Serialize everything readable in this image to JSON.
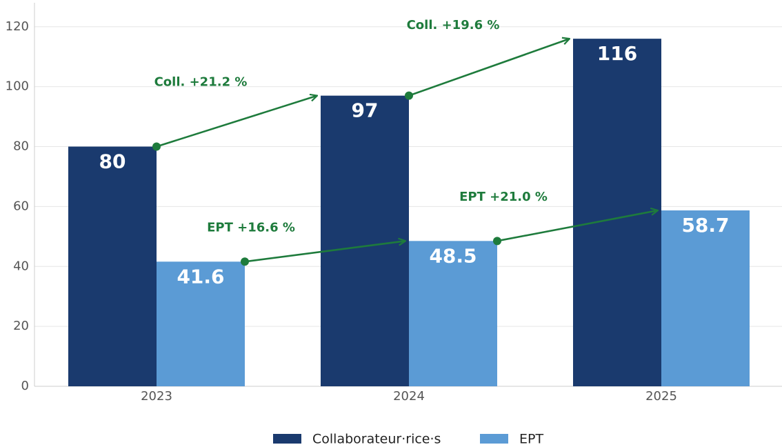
{
  "chart_data": {
    "type": "bar",
    "categories": [
      "2023",
      "2024",
      "2025"
    ],
    "series": [
      {
        "name": "Collaborateur·rice·s",
        "color": "#1a3a6e",
        "values": [
          80,
          97,
          116
        ],
        "annotations": [
          "Coll. +21.2 %",
          "Coll. +19.6 %"
        ]
      },
      {
        "name": "EPT",
        "color": "#5b9bd5",
        "values": [
          41.6,
          48.5,
          58.7
        ],
        "annotations": [
          "EPT +16.6 %",
          "EPT +21.0 %"
        ]
      }
    ],
    "annotation_color": "#1e7b3c",
    "ylim": [
      0,
      128
    ],
    "yticks": [
      0,
      20,
      40,
      60,
      80,
      100,
      120
    ],
    "grid": true,
    "legend": "bottom"
  }
}
